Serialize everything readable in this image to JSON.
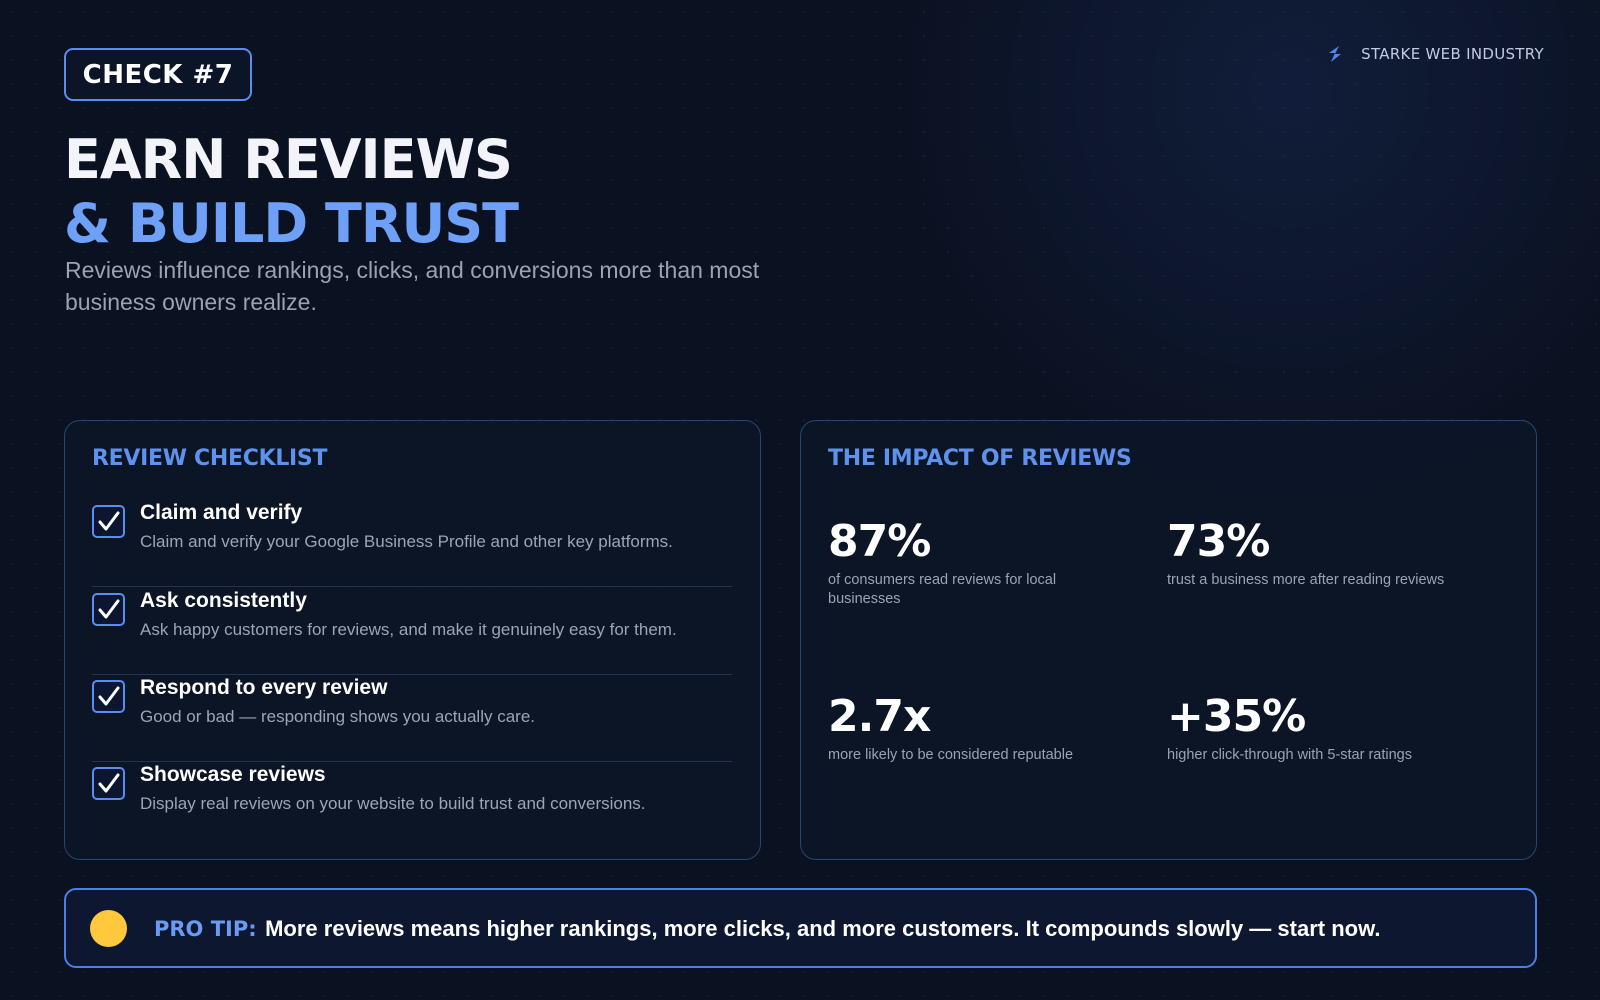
{
  "badge": {
    "label": "CHECK #7"
  },
  "brand": {
    "name": "STARKE WEB INDUSTRY",
    "icon": "lightning-logo-icon",
    "accent": "#5b8cf0"
  },
  "header": {
    "title_line1": "EARN REVIEWS",
    "title_line2": "& BUILD TRUST",
    "subtitle": "Reviews influence rankings, clicks, and conversions more than most business owners realize."
  },
  "checklist": {
    "heading": "REVIEW CHECKLIST",
    "items": [
      {
        "title": "Claim and verify",
        "desc": "Claim and verify your Google Business Profile and other key platforms.",
        "checked": true
      },
      {
        "title": "Ask consistently",
        "desc": "Ask happy customers for reviews, and make it genuinely easy for them.",
        "checked": true
      },
      {
        "title": "Respond to every review",
        "desc": "Good or bad — responding shows you actually care.",
        "checked": true
      },
      {
        "title": "Showcase reviews",
        "desc": "Display real reviews on your website to build trust and conversions.",
        "checked": true
      }
    ]
  },
  "impact": {
    "heading": "THE IMPACT OF REVIEWS",
    "stats": [
      {
        "value": "87%",
        "label": "of consumers read reviews for local businesses"
      },
      {
        "value": "73%",
        "label": "trust a business more after reading reviews"
      },
      {
        "value": "2.7x",
        "label": "more likely to be considered reputable"
      },
      {
        "value": "+35%",
        "label": "higher click-through with 5-star ratings"
      }
    ]
  },
  "tip": {
    "label": "PRO TIP:",
    "text": "More reviews means higher rankings, more clicks, and more customers. It compounds slowly — start now.",
    "dot_color": "#ffc83d"
  },
  "colors": {
    "background": "#0a1120",
    "accent": "#6ea0f8",
    "card_border": "#2c4470"
  }
}
